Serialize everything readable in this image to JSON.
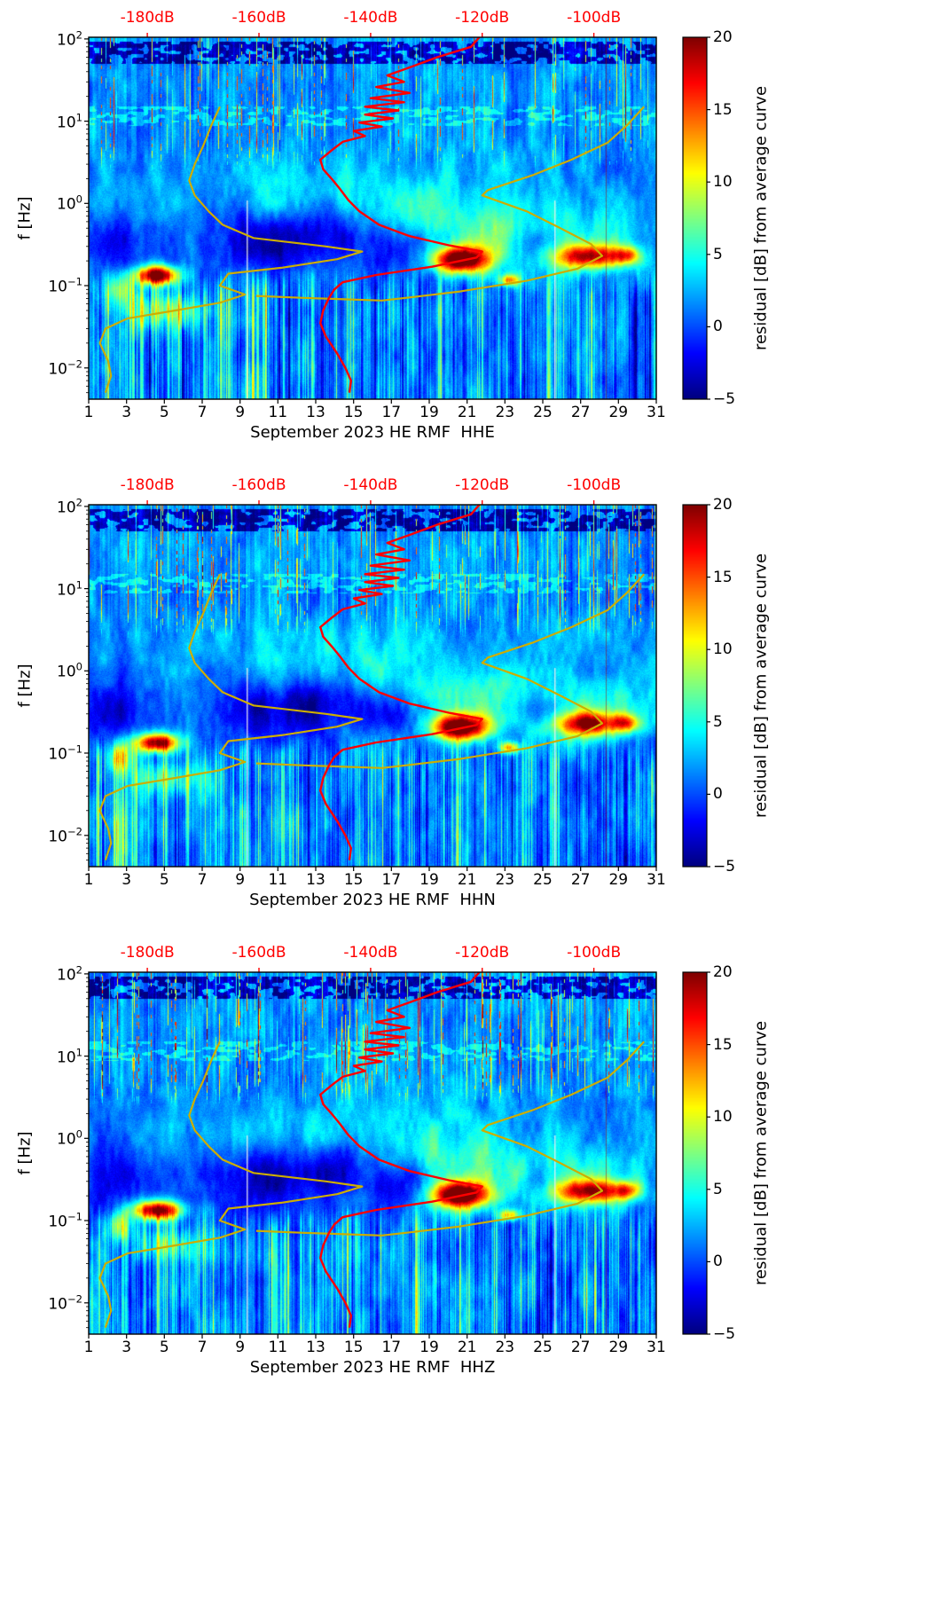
{
  "figure": {
    "top_axis": {
      "labels": [
        "-180dB",
        "-160dB",
        "-140dB",
        "-120dB",
        "-100dB"
      ],
      "dB_values": [
        -180,
        -160,
        -140,
        -120,
        -100
      ],
      "day_positions": [
        4.1,
        10.0,
        15.9,
        21.8,
        27.7
      ],
      "color": "#ff0000"
    },
    "x_axis": {
      "tick_labels": [
        "1",
        "3",
        "5",
        "7",
        "9",
        "11",
        "13",
        "15",
        "17",
        "19",
        "21",
        "23",
        "25",
        "27",
        "29",
        "31"
      ],
      "tick_days": [
        1,
        3,
        5,
        7,
        9,
        11,
        13,
        15,
        17,
        19,
        21,
        23,
        25,
        27,
        29,
        31
      ]
    },
    "y_axis": {
      "label": "f [Hz]",
      "tick_exponents": [
        2,
        1,
        0,
        -1,
        -2
      ]
    },
    "colorbar": {
      "label": "residual [dB] from average curve",
      "tick_values": [
        20,
        15,
        10,
        5,
        0,
        -5
      ],
      "tick_labels": [
        "20",
        "15",
        "10",
        "5",
        "0",
        "−5"
      ],
      "vmin": -5,
      "vmax": 20,
      "colormap": "jet"
    }
  },
  "panels": [
    {
      "channel": "HHE",
      "xlabel": "September 2023 HE RMF  HHE"
    },
    {
      "channel": "HHN",
      "xlabel": "September 2023 HE RMF  HHN"
    },
    {
      "channel": "HHZ",
      "xlabel": "September 2023 HE RMF  HHZ"
    }
  ],
  "chart_data": {
    "type": "heatmap",
    "subtype": "residual-spectrogram",
    "n_panels": 3,
    "panel_channels": [
      "HHE",
      "HHN",
      "HHZ"
    ],
    "x": {
      "label": "day of September 2023",
      "range": [
        1,
        31
      ]
    },
    "y": {
      "label": "f [Hz]",
      "scale": "log",
      "range_hz": [
        0.0042,
        105
      ]
    },
    "color": {
      "label": "residual [dB] from average curve",
      "range_dB": [
        -5,
        20
      ],
      "colormap": "jet"
    },
    "top_axis_dB_ticks": [
      -180,
      -160,
      -140,
      -120,
      -100
    ],
    "hotspots": [
      {
        "day": 4.6,
        "f_hz": 0.13,
        "peak_residual_dB": 20
      },
      {
        "day": 20.6,
        "f_hz": 0.21,
        "peak_residual_dB": 20
      },
      {
        "day": 27.4,
        "f_hz": 0.23,
        "peak_residual_dB": 16
      },
      {
        "day": 23.2,
        "f_hz": 0.12,
        "peak_residual_dB": 12
      }
    ],
    "curves": {
      "red_mean_psd": {
        "color": "#ff0000",
        "points_dB_f": [
          [
            -120,
            115
          ],
          [
            -122,
            80
          ],
          [
            -128,
            60
          ],
          [
            -133,
            45
          ],
          [
            -137,
            36
          ],
          [
            -134,
            30
          ],
          [
            -139,
            26
          ],
          [
            -133,
            22
          ],
          [
            -140,
            19
          ],
          [
            -134,
            17
          ],
          [
            -141,
            15
          ],
          [
            -135,
            13.5
          ],
          [
            -141,
            12
          ],
          [
            -136,
            10.8
          ],
          [
            -142,
            9.6
          ],
          [
            -138,
            8.6
          ],
          [
            -143,
            7.6
          ],
          [
            -141,
            6.6
          ],
          [
            -145,
            5.6
          ],
          [
            -147,
            4.4
          ],
          [
            -149,
            3.4
          ],
          [
            -148.5,
            2.6
          ],
          [
            -147,
            2
          ],
          [
            -145.5,
            1.5
          ],
          [
            -144,
            1.1
          ],
          [
            -142,
            0.8
          ],
          [
            -138.5,
            0.55
          ],
          [
            -133,
            0.4
          ],
          [
            -126,
            0.31
          ],
          [
            -120,
            0.26
          ],
          [
            -121,
            0.22
          ],
          [
            -129,
            0.17
          ],
          [
            -139,
            0.135
          ],
          [
            -145,
            0.11
          ],
          [
            -146.5,
            0.09
          ],
          [
            -147.5,
            0.07
          ],
          [
            -148.5,
            0.05
          ],
          [
            -149,
            0.035
          ],
          [
            -148,
            0.024
          ],
          [
            -146,
            0.015
          ],
          [
            -144.5,
            0.01
          ],
          [
            -143.5,
            0.007
          ],
          [
            -143.8,
            0.005
          ]
        ]
      },
      "yellow_low_noise_model": {
        "color": "#cdad00",
        "points_dB_f": [
          [
            -167,
            15
          ],
          [
            -168.5,
            9
          ],
          [
            -170,
            5
          ],
          [
            -171.5,
            3
          ],
          [
            -172.5,
            1.9
          ],
          [
            -171.5,
            1.25
          ],
          [
            -169,
            0.8
          ],
          [
            -166.5,
            0.55
          ],
          [
            -161,
            0.38
          ],
          [
            -148,
            0.3
          ],
          [
            -141.5,
            0.26
          ],
          [
            -146,
            0.21
          ],
          [
            -156,
            0.165
          ],
          [
            -165.5,
            0.14
          ],
          [
            -167,
            0.1
          ],
          [
            -162.5,
            0.078
          ],
          [
            -167,
            0.062
          ],
          [
            -175,
            0.05
          ],
          [
            -183.5,
            0.04
          ],
          [
            -187.5,
            0.03
          ],
          [
            -188.5,
            0.02
          ],
          [
            -187,
            0.012
          ],
          [
            -186.5,
            0.008
          ],
          [
            -187.5,
            0.005
          ]
        ]
      },
      "yellow_high_noise_model": {
        "color": "#cdad00",
        "points_dB_f": [
          [
            -91,
            15
          ],
          [
            -94,
            9
          ],
          [
            -97.5,
            5.5
          ],
          [
            -104,
            3.4
          ],
          [
            -111,
            2.2
          ],
          [
            -119,
            1.45
          ],
          [
            -120,
            1.25
          ],
          [
            -112,
            0.8
          ],
          [
            -106,
            0.5
          ],
          [
            -100.5,
            0.32
          ],
          [
            -98.5,
            0.23
          ],
          [
            -103,
            0.16
          ],
          [
            -112,
            0.115
          ],
          [
            -124,
            0.085
          ],
          [
            -133,
            0.072
          ],
          [
            -138,
            0.066
          ],
          [
            -152,
            0.071
          ],
          [
            -160.5,
            0.075
          ]
        ]
      }
    }
  }
}
